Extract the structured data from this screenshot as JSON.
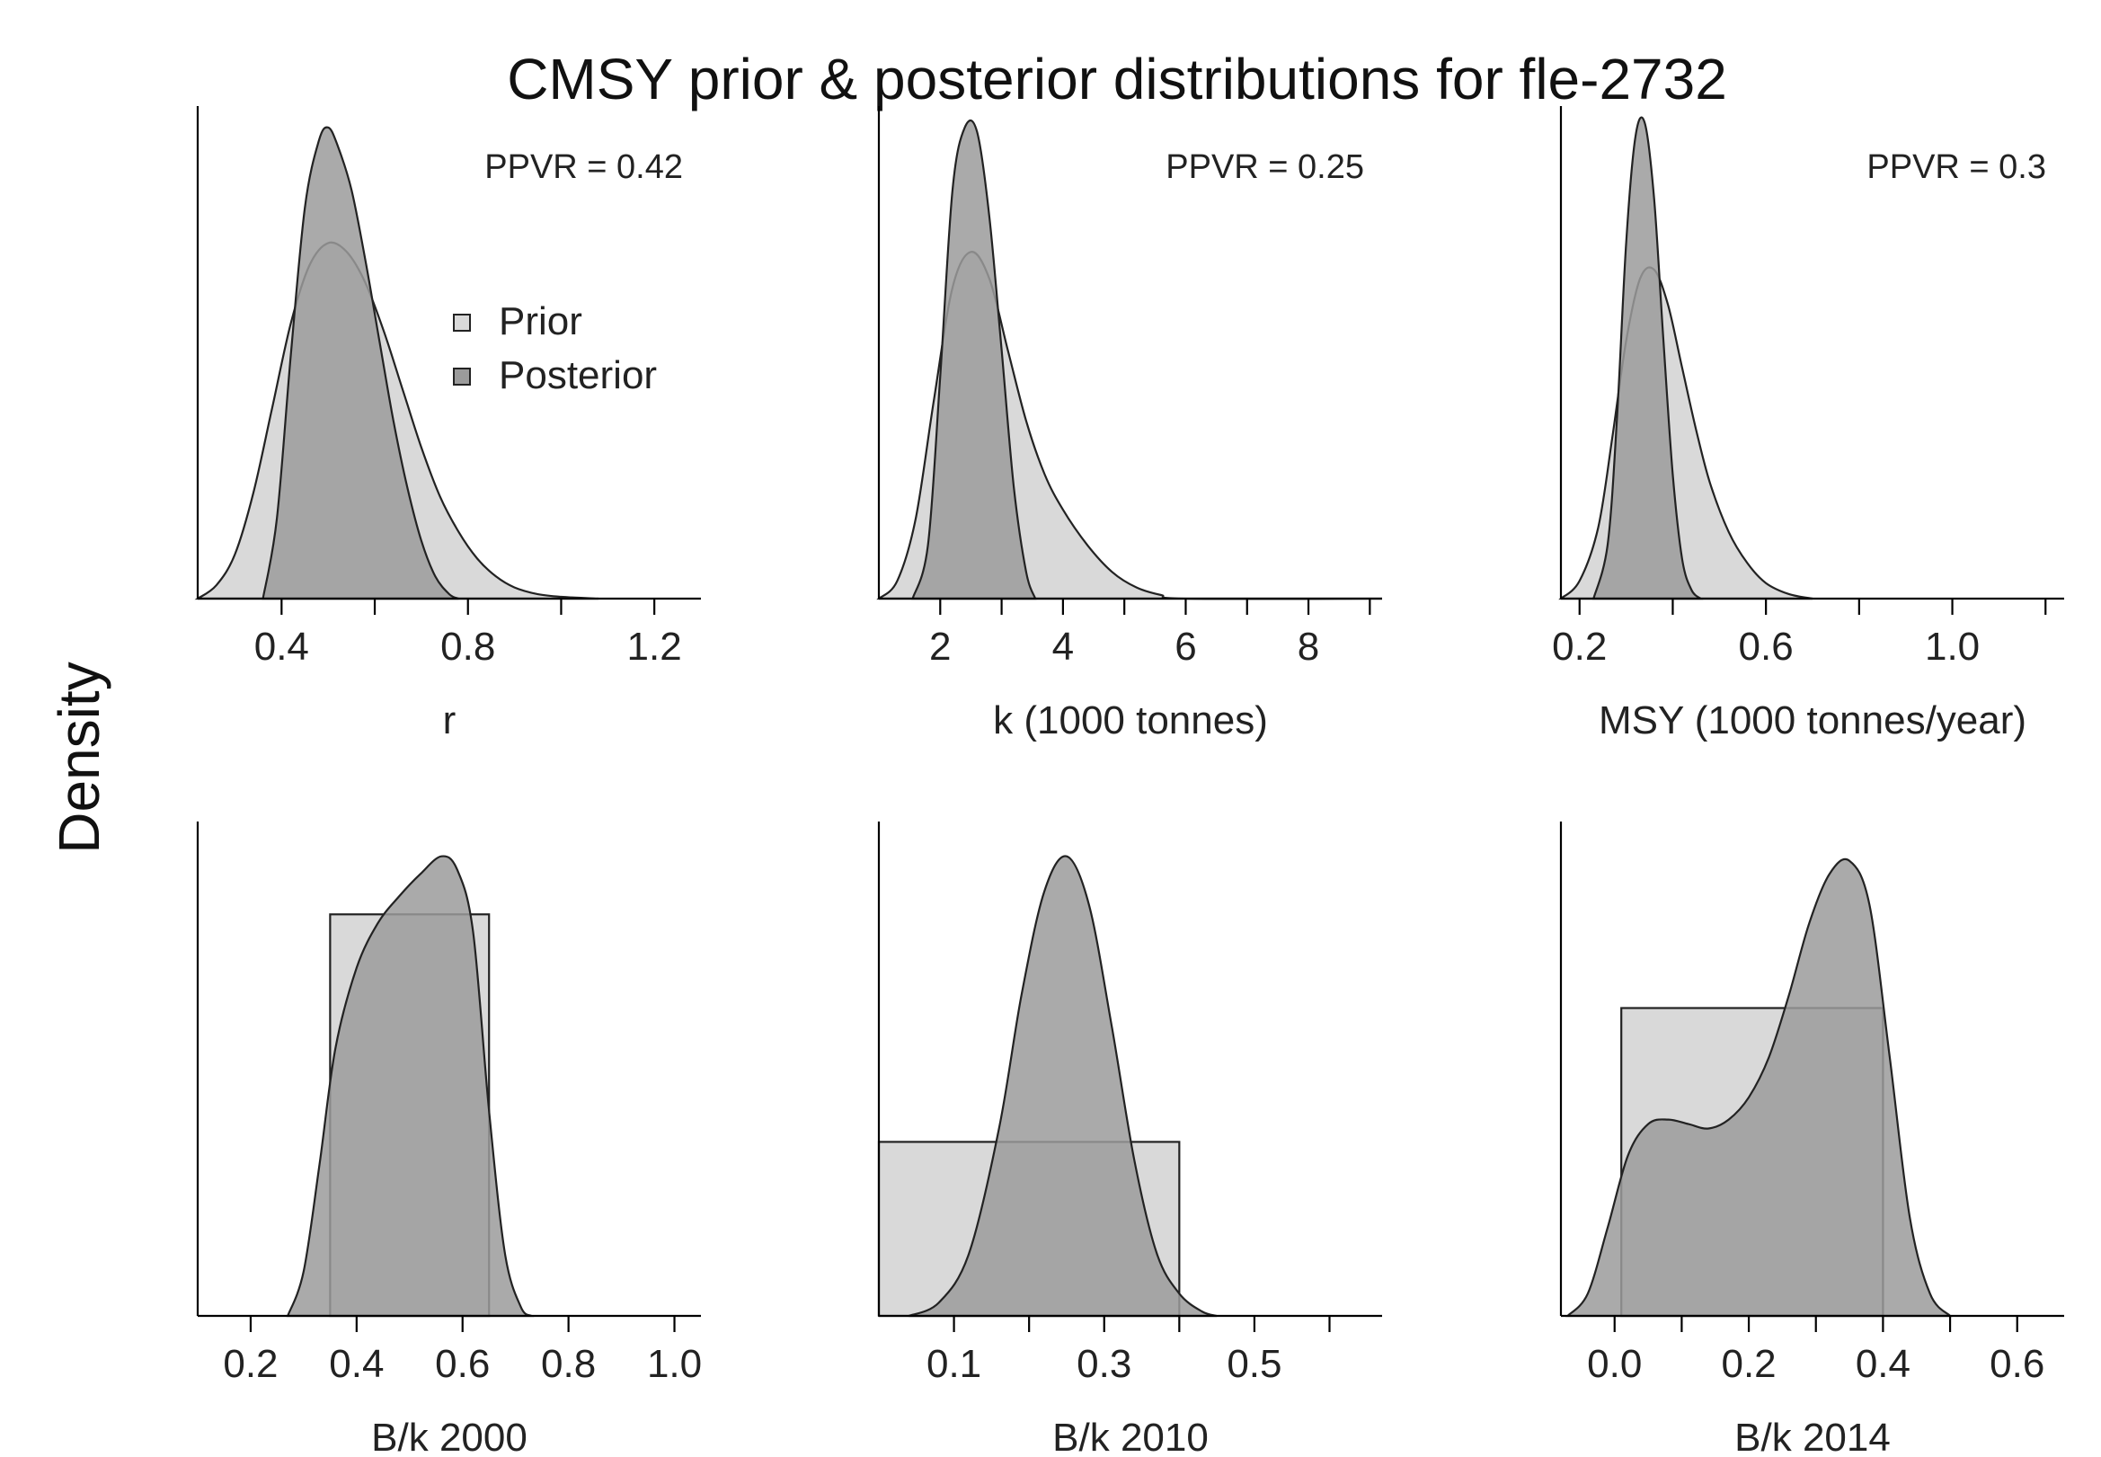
{
  "figure": {
    "title": "CMSY prior & posterior distributions for fle-2732",
    "ylabel": "Density",
    "legend": {
      "position": "inside-top-left-panel",
      "entries": [
        {
          "label": "Prior",
          "color": "#d9d9d9"
        },
        {
          "label": "Posterior",
          "color": "#9b9b9b"
        }
      ]
    },
    "colors": {
      "prior": "#d9d9d9",
      "posterior": "#9b9b9b",
      "outline": "#222222"
    }
  },
  "chart_data": [
    {
      "type": "area",
      "xlabel": "r",
      "annotation": "PPVR = 0.42",
      "xlim": [
        0.22,
        1.3
      ],
      "ylim": [
        0,
        1.1
      ],
      "xticks": [
        0.4,
        0.6,
        0.8,
        1.0,
        1.2
      ],
      "xticklabels": [
        "0.4",
        "",
        "0.8",
        "",
        "1.2"
      ],
      "legend": true,
      "series": [
        {
          "name": "Prior",
          "kind": "curve",
          "x": [
            0.22,
            0.26,
            0.3,
            0.34,
            0.38,
            0.42,
            0.46,
            0.5,
            0.54,
            0.58,
            0.62,
            0.66,
            0.7,
            0.74,
            0.78,
            0.82,
            0.86,
            0.9,
            0.95,
            1.0,
            1.08
          ],
          "y": [
            0.0,
            0.03,
            0.1,
            0.24,
            0.43,
            0.62,
            0.75,
            0.8,
            0.78,
            0.71,
            0.6,
            0.47,
            0.34,
            0.23,
            0.15,
            0.09,
            0.05,
            0.025,
            0.01,
            0.004,
            0.0
          ]
        },
        {
          "name": "Posterior",
          "kind": "curve",
          "x": [
            0.36,
            0.39,
            0.42,
            0.45,
            0.48,
            0.5,
            0.52,
            0.55,
            0.58,
            0.61,
            0.64,
            0.67,
            0.7,
            0.73,
            0.76,
            0.78
          ],
          "y": [
            0.0,
            0.18,
            0.55,
            0.88,
            1.03,
            1.06,
            1.02,
            0.92,
            0.76,
            0.58,
            0.4,
            0.25,
            0.13,
            0.05,
            0.01,
            0.0
          ]
        }
      ]
    },
    {
      "type": "area",
      "xlabel": "k (1000 tonnes)",
      "annotation": "PPVR = 0.25",
      "xlim": [
        1.0,
        9.2
      ],
      "ylim": [
        0,
        1.1
      ],
      "xticks": [
        2,
        3,
        4,
        5,
        6,
        7,
        8,
        9
      ],
      "xticklabels": [
        "2",
        "",
        "4",
        "",
        "6",
        "",
        "8",
        ""
      ],
      "legend": false,
      "series": [
        {
          "name": "Prior",
          "kind": "curve",
          "x": [
            1.0,
            1.3,
            1.6,
            1.9,
            2.2,
            2.5,
            2.8,
            3.1,
            3.4,
            3.7,
            4.0,
            4.4,
            4.8,
            5.2,
            5.6,
            6.0,
            9.2
          ],
          "y": [
            0.0,
            0.04,
            0.18,
            0.45,
            0.7,
            0.78,
            0.72,
            0.56,
            0.4,
            0.28,
            0.2,
            0.12,
            0.06,
            0.025,
            0.008,
            0.0,
            0.0
          ]
        },
        {
          "name": "Posterior",
          "kind": "curve",
          "x": [
            1.55,
            1.8,
            2.0,
            2.2,
            2.4,
            2.6,
            2.8,
            3.0,
            3.2,
            3.4,
            3.55
          ],
          "y": [
            0.0,
            0.12,
            0.5,
            0.92,
            1.06,
            1.05,
            0.86,
            0.56,
            0.25,
            0.06,
            0.0
          ]
        }
      ]
    },
    {
      "type": "area",
      "xlabel": "MSY (1000 tonnes/year)",
      "annotation": "PPVR = 0.3",
      "xlim": [
        0.16,
        1.24
      ],
      "ylim": [
        0,
        1.1
      ],
      "xticks": [
        0.2,
        0.4,
        0.6,
        0.8,
        1.0,
        1.2
      ],
      "xticklabels": [
        "0.2",
        "",
        "0.6",
        "",
        "1.0",
        ""
      ],
      "legend": false,
      "series": [
        {
          "name": "Prior",
          "kind": "curve",
          "x": [
            0.16,
            0.2,
            0.24,
            0.27,
            0.3,
            0.33,
            0.36,
            0.39,
            0.42,
            0.45,
            0.48,
            0.52,
            0.56,
            0.6,
            0.65,
            0.7
          ],
          "y": [
            0.0,
            0.04,
            0.16,
            0.36,
            0.58,
            0.72,
            0.74,
            0.66,
            0.52,
            0.38,
            0.26,
            0.15,
            0.08,
            0.035,
            0.01,
            0.0
          ]
        },
        {
          "name": "Posterior",
          "kind": "curve",
          "x": [
            0.23,
            0.26,
            0.28,
            0.3,
            0.32,
            0.34,
            0.36,
            0.38,
            0.4,
            0.42,
            0.44,
            0.46
          ],
          "y": [
            0.0,
            0.12,
            0.4,
            0.8,
            1.04,
            1.07,
            0.9,
            0.58,
            0.28,
            0.09,
            0.02,
            0.0
          ]
        }
      ]
    },
    {
      "type": "area",
      "xlabel": "B/k 2000",
      "xlim": [
        0.1,
        1.05
      ],
      "ylim": [
        0,
        1.1
      ],
      "xticks": [
        0.2,
        0.4,
        0.6,
        0.8,
        1.0
      ],
      "xticklabels": [
        "0.2",
        "0.4",
        "0.6",
        "0.8",
        "1.0"
      ],
      "legend": false,
      "series": [
        {
          "name": "Prior",
          "kind": "uniform",
          "range": [
            0.35,
            0.65
          ],
          "height": 0.9
        },
        {
          "name": "Posterior",
          "kind": "curve",
          "x": [
            0.27,
            0.3,
            0.33,
            0.36,
            0.4,
            0.44,
            0.48,
            0.52,
            0.56,
            0.59,
            0.62,
            0.65,
            0.68,
            0.71,
            0.73
          ],
          "y": [
            0.0,
            0.1,
            0.34,
            0.6,
            0.78,
            0.88,
            0.94,
            0.99,
            1.03,
            1.0,
            0.86,
            0.46,
            0.14,
            0.02,
            0.0
          ]
        }
      ]
    },
    {
      "type": "area",
      "xlabel": "B/k 2010",
      "xlim": [
        0.0,
        0.67
      ],
      "ylim": [
        0,
        1.1
      ],
      "xticks": [
        0.1,
        0.2,
        0.3,
        0.4,
        0.5,
        0.6
      ],
      "xticklabels": [
        "0.1",
        "",
        "0.3",
        "",
        "0.5",
        ""
      ],
      "legend": false,
      "series": [
        {
          "name": "Prior",
          "kind": "uniform",
          "range": [
            0.0,
            0.4
          ],
          "height": 0.39
        },
        {
          "name": "Posterior",
          "kind": "curve",
          "x": [
            0.04,
            0.08,
            0.12,
            0.16,
            0.19,
            0.22,
            0.25,
            0.28,
            0.31,
            0.34,
            0.37,
            0.4,
            0.43,
            0.45
          ],
          "y": [
            0.0,
            0.03,
            0.14,
            0.42,
            0.72,
            0.95,
            1.03,
            0.92,
            0.65,
            0.35,
            0.14,
            0.05,
            0.01,
            0.0
          ]
        }
      ]
    },
    {
      "type": "area",
      "xlabel": "B/k 2014",
      "xlim": [
        -0.08,
        0.67
      ],
      "ylim": [
        0,
        1.1
      ],
      "xticks": [
        0.0,
        0.1,
        0.2,
        0.3,
        0.4,
        0.5,
        0.6
      ],
      "xticklabels": [
        "0.0",
        "",
        "0.2",
        "",
        "0.4",
        "",
        "0.6"
      ],
      "legend": false,
      "series": [
        {
          "name": "Prior",
          "kind": "uniform",
          "range": [
            0.01,
            0.4
          ],
          "height": 0.69
        },
        {
          "name": "Posterior",
          "kind": "curve",
          "x": [
            -0.07,
            -0.04,
            -0.01,
            0.02,
            0.05,
            0.08,
            0.11,
            0.14,
            0.17,
            0.2,
            0.23,
            0.26,
            0.29,
            0.32,
            0.35,
            0.38,
            0.41,
            0.44,
            0.47,
            0.5
          ],
          "y": [
            0.0,
            0.05,
            0.2,
            0.36,
            0.43,
            0.44,
            0.43,
            0.42,
            0.44,
            0.49,
            0.58,
            0.72,
            0.88,
            0.99,
            1.02,
            0.92,
            0.58,
            0.22,
            0.05,
            0.0
          ]
        }
      ]
    }
  ]
}
